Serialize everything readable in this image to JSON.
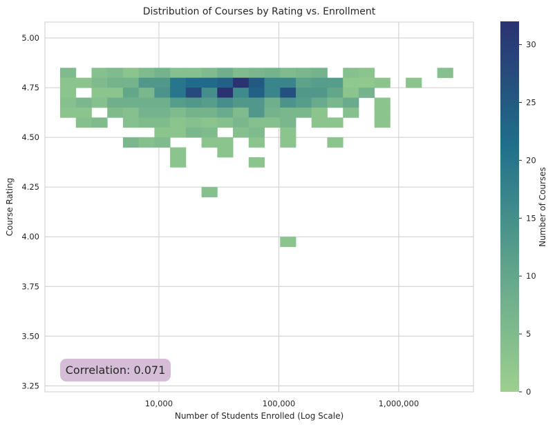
{
  "chart_data": {
    "type": "heatmap",
    "title": "Distribution of Courses by Rating vs. Enrollment",
    "xlabel": "Number of Students Enrolled (Log Scale)",
    "ylabel": "Course Rating",
    "x_scale": "log",
    "x_ticks": [
      10000,
      100000,
      1000000
    ],
    "x_tick_labels": [
      "10,000",
      "100,000",
      "1,000,000"
    ],
    "xlim": [
      1120,
      4200000
    ],
    "y_ticks": [
      3.25,
      3.5,
      3.75,
      4.0,
      4.25,
      4.5,
      4.75,
      5.0
    ],
    "y_tick_labels": [
      "3.25",
      "3.50",
      "3.75",
      "4.00",
      "4.25",
      "4.50",
      "4.75",
      "5.00"
    ],
    "ylim": [
      3.22,
      5.08
    ],
    "grid": true,
    "x_bin_edges": [
      1500,
      2028,
      2742,
      3708,
      5014,
      6780,
      9168,
      12397,
      16764,
      22669,
      30654,
      41451,
      56051,
      75794,
      102490,
      138590,
      187400,
      253400,
      342700,
      463400,
      626600,
      847300,
      1145700,
      1549300,
      2095000,
      2833000
    ],
    "y_bin_edges": [
      3.3,
      3.35,
      3.4,
      3.45,
      3.5,
      3.55,
      3.6,
      3.65,
      3.7,
      3.75,
      3.8,
      3.85,
      3.9,
      3.95,
      4.0,
      4.05,
      4.1,
      4.15,
      4.2,
      4.25,
      4.3,
      4.35,
      4.4,
      4.45,
      4.5,
      4.55,
      4.6,
      4.65,
      4.7,
      4.75,
      4.8,
      4.85,
      4.9,
      4.95,
      5.0
    ],
    "colorbar": {
      "label": "Number of Courses",
      "min": 0,
      "max": 32,
      "ticks": [
        0,
        5,
        10,
        15,
        20,
        25,
        30
      ],
      "colors": [
        "#9dd08f",
        "#5fa48b",
        "#1f6f8b",
        "#2b3272"
      ]
    },
    "annotation": "Correlation: 0.071",
    "annotation_bg": "#d5bdd7",
    "cells": [
      [
        0,
        30,
        5
      ],
      [
        2,
        30,
        4
      ],
      [
        3,
        30,
        5
      ],
      [
        4,
        30,
        3
      ],
      [
        5,
        30,
        5
      ],
      [
        6,
        30,
        7
      ],
      [
        7,
        30,
        4
      ],
      [
        8,
        30,
        4
      ],
      [
        9,
        30,
        5
      ],
      [
        10,
        30,
        8
      ],
      [
        11,
        30,
        5
      ],
      [
        12,
        30,
        6
      ],
      [
        13,
        30,
        7
      ],
      [
        14,
        30,
        5
      ],
      [
        15,
        30,
        6
      ],
      [
        16,
        30,
        7
      ],
      [
        18,
        30,
        4
      ],
      [
        19,
        30,
        3
      ],
      [
        24,
        30,
        4
      ],
      [
        0,
        29,
        3
      ],
      [
        1,
        29,
        3
      ],
      [
        2,
        29,
        5
      ],
      [
        3,
        29,
        7
      ],
      [
        4,
        29,
        7
      ],
      [
        5,
        29,
        13
      ],
      [
        6,
        29,
        13
      ],
      [
        7,
        29,
        20
      ],
      [
        8,
        29,
        22
      ],
      [
        9,
        29,
        22
      ],
      [
        10,
        29,
        24
      ],
      [
        11,
        29,
        32
      ],
      [
        12,
        29,
        25
      ],
      [
        13,
        29,
        17
      ],
      [
        14,
        29,
        17
      ],
      [
        15,
        29,
        11
      ],
      [
        16,
        29,
        12
      ],
      [
        17,
        29,
        12
      ],
      [
        18,
        29,
        2
      ],
      [
        19,
        29,
        2
      ],
      [
        20,
        29,
        3
      ],
      [
        22,
        29,
        3
      ],
      [
        0,
        28,
        3
      ],
      [
        2,
        28,
        3
      ],
      [
        3,
        28,
        3
      ],
      [
        4,
        28,
        10
      ],
      [
        5,
        28,
        6
      ],
      [
        6,
        28,
        14
      ],
      [
        7,
        28,
        20
      ],
      [
        8,
        28,
        28
      ],
      [
        9,
        28,
        15
      ],
      [
        10,
        28,
        32
      ],
      [
        11,
        28,
        16
      ],
      [
        12,
        28,
        24
      ],
      [
        13,
        28,
        17
      ],
      [
        14,
        28,
        27
      ],
      [
        15,
        28,
        13
      ],
      [
        16,
        28,
        13
      ],
      [
        17,
        28,
        10
      ],
      [
        18,
        28,
        3
      ],
      [
        19,
        28,
        7
      ],
      [
        0,
        27,
        4
      ],
      [
        1,
        27,
        6
      ],
      [
        2,
        27,
        4
      ],
      [
        3,
        27,
        8
      ],
      [
        4,
        27,
        8
      ],
      [
        5,
        27,
        8
      ],
      [
        6,
        27,
        8
      ],
      [
        7,
        27,
        12
      ],
      [
        8,
        27,
        13
      ],
      [
        9,
        27,
        12
      ],
      [
        10,
        27,
        15
      ],
      [
        11,
        27,
        13
      ],
      [
        12,
        27,
        13
      ],
      [
        13,
        27,
        8
      ],
      [
        14,
        27,
        14
      ],
      [
        15,
        27,
        12
      ],
      [
        16,
        27,
        9
      ],
      [
        17,
        27,
        6
      ],
      [
        18,
        27,
        9
      ],
      [
        20,
        27,
        3
      ],
      [
        0,
        26,
        3
      ],
      [
        1,
        26,
        3
      ],
      [
        3,
        26,
        5
      ],
      [
        4,
        26,
        4
      ],
      [
        5,
        26,
        7
      ],
      [
        6,
        26,
        7
      ],
      [
        7,
        26,
        5
      ],
      [
        8,
        26,
        7
      ],
      [
        9,
        26,
        7
      ],
      [
        10,
        26,
        9
      ],
      [
        11,
        26,
        5
      ],
      [
        12,
        26,
        13
      ],
      [
        13,
        26,
        7
      ],
      [
        14,
        26,
        6
      ],
      [
        15,
        26,
        6
      ],
      [
        16,
        26,
        3
      ],
      [
        18,
        26,
        4
      ],
      [
        20,
        26,
        3
      ],
      [
        1,
        25,
        4
      ],
      [
        2,
        25,
        5
      ],
      [
        4,
        25,
        4
      ],
      [
        5,
        25,
        5
      ],
      [
        6,
        25,
        5
      ],
      [
        7,
        25,
        3
      ],
      [
        8,
        25,
        4
      ],
      [
        9,
        25,
        3
      ],
      [
        10,
        25,
        4
      ],
      [
        11,
        25,
        6
      ],
      [
        12,
        25,
        4
      ],
      [
        13,
        25,
        4
      ],
      [
        14,
        25,
        6
      ],
      [
        16,
        25,
        3
      ],
      [
        17,
        25,
        3
      ],
      [
        20,
        25,
        3
      ],
      [
        6,
        24,
        3
      ],
      [
        7,
        24,
        3
      ],
      [
        8,
        24,
        6
      ],
      [
        9,
        24,
        5
      ],
      [
        11,
        24,
        4
      ],
      [
        12,
        24,
        5
      ],
      [
        14,
        24,
        3
      ],
      [
        4,
        23,
        6
      ],
      [
        5,
        23,
        4
      ],
      [
        6,
        23,
        5
      ],
      [
        9,
        23,
        3
      ],
      [
        10,
        23,
        3
      ],
      [
        12,
        23,
        3
      ],
      [
        14,
        23,
        3
      ],
      [
        17,
        23,
        3
      ],
      [
        7,
        22,
        3
      ],
      [
        10,
        22,
        3
      ],
      [
        7,
        21,
        3
      ],
      [
        12,
        21,
        3
      ],
      [
        9,
        18,
        4
      ],
      [
        14,
        13,
        3
      ]
    ]
  }
}
